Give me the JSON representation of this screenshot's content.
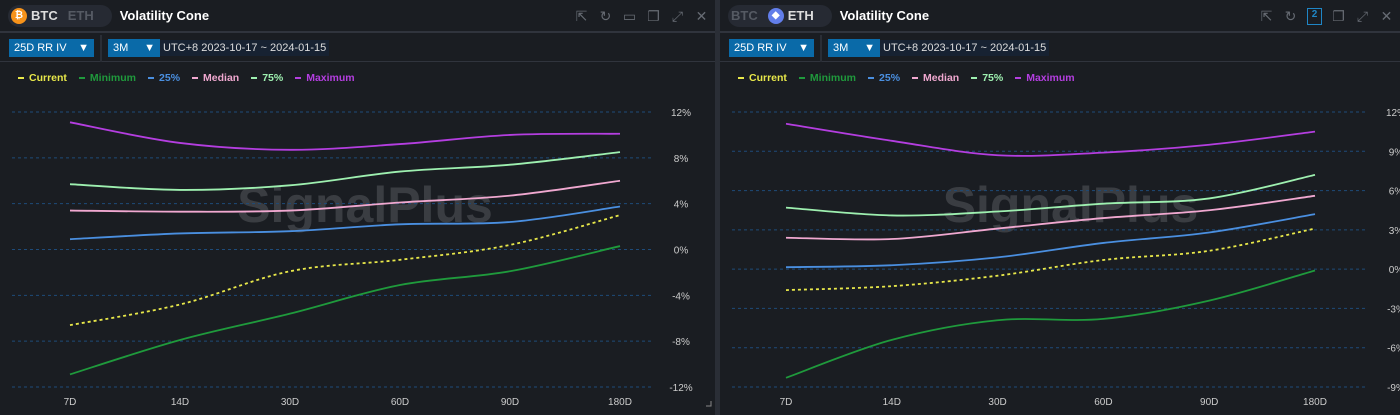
{
  "panels": [
    {
      "coins": [
        "BTC",
        "ETH"
      ],
      "active": "BTC",
      "title": "Volatility Cone",
      "metric": "25D RR IV",
      "period": "3M",
      "range": "UTC+8 2023-10-17 ~ 2024-01-15",
      "watermark": "SignalPlus"
    },
    {
      "coins": [
        "BTC",
        "ETH"
      ],
      "active": "ETH",
      "title": "Volatility Cone",
      "metric": "25D RR IV",
      "period": "3M",
      "range": "UTC+8 2023-10-17 ~ 2024-01-15",
      "watermark": "SignalPlus",
      "badge": "2"
    }
  ],
  "legend": [
    {
      "name": "Current",
      "color": "#e8e84a"
    },
    {
      "name": "Minimum",
      "color": "#1f9a3c"
    },
    {
      "name": "25%",
      "color": "#4a8fe0"
    },
    {
      "name": "Median",
      "color": "#f0a8d0"
    },
    {
      "name": "75%",
      "color": "#9ef0b0"
    },
    {
      "name": "Maximum",
      "color": "#b43ee0"
    }
  ],
  "chart_data": [
    {
      "type": "line",
      "title": "BTC Volatility Cone",
      "categories": [
        "7D",
        "14D",
        "30D",
        "60D",
        "90D",
        "180D"
      ],
      "yticks": [
        "12%",
        "8%",
        "4%",
        "0%",
        "-4%",
        "-8%",
        "-12%"
      ],
      "ylim": [
        -12,
        12
      ],
      "ystep": 4,
      "series": [
        {
          "name": "Current",
          "values": [
            -6.6,
            -4.8,
            -1.9,
            -0.9,
            0.4,
            3.0
          ]
        },
        {
          "name": "Minimum",
          "values": [
            -10.9,
            -7.9,
            -5.6,
            -3.1,
            -1.9,
            0.3
          ]
        },
        {
          "name": "25%",
          "values": [
            0.9,
            1.4,
            1.6,
            2.2,
            2.4,
            3.75
          ]
        },
        {
          "name": "Median",
          "values": [
            3.4,
            3.3,
            3.4,
            4.1,
            4.7,
            6.0
          ]
        },
        {
          "name": "75%",
          "values": [
            5.7,
            5.2,
            5.6,
            6.8,
            7.4,
            8.5
          ]
        },
        {
          "name": "Maximum",
          "values": [
            11.1,
            9.3,
            8.7,
            9.2,
            10.0,
            10.1
          ]
        }
      ]
    },
    {
      "type": "line",
      "title": "ETH Volatility Cone",
      "categories": [
        "7D",
        "14D",
        "30D",
        "60D",
        "90D",
        "180D"
      ],
      "yticks": [
        "12%",
        "9%",
        "6%",
        "3%",
        "0%",
        "-3%",
        "-6%",
        "-9%"
      ],
      "ylim": [
        -9,
        12
      ],
      "ystep": 3,
      "series": [
        {
          "name": "Current",
          "values": [
            -1.6,
            -1.3,
            -0.5,
            0.7,
            1.4,
            3.1
          ]
        },
        {
          "name": "Minimum",
          "values": [
            -8.3,
            -5.4,
            -3.9,
            -3.8,
            -2.4,
            -0.1
          ]
        },
        {
          "name": "25%",
          "values": [
            0.15,
            0.3,
            0.9,
            2.0,
            2.8,
            4.2
          ]
        },
        {
          "name": "Median",
          "values": [
            2.4,
            2.3,
            3.1,
            3.9,
            4.5,
            5.6
          ]
        },
        {
          "name": "75%",
          "values": [
            4.7,
            4.1,
            4.4,
            5.0,
            5.4,
            7.2
          ]
        },
        {
          "name": "Maximum",
          "values": [
            11.1,
            9.8,
            8.7,
            8.9,
            9.5,
            10.5
          ]
        }
      ]
    }
  ]
}
